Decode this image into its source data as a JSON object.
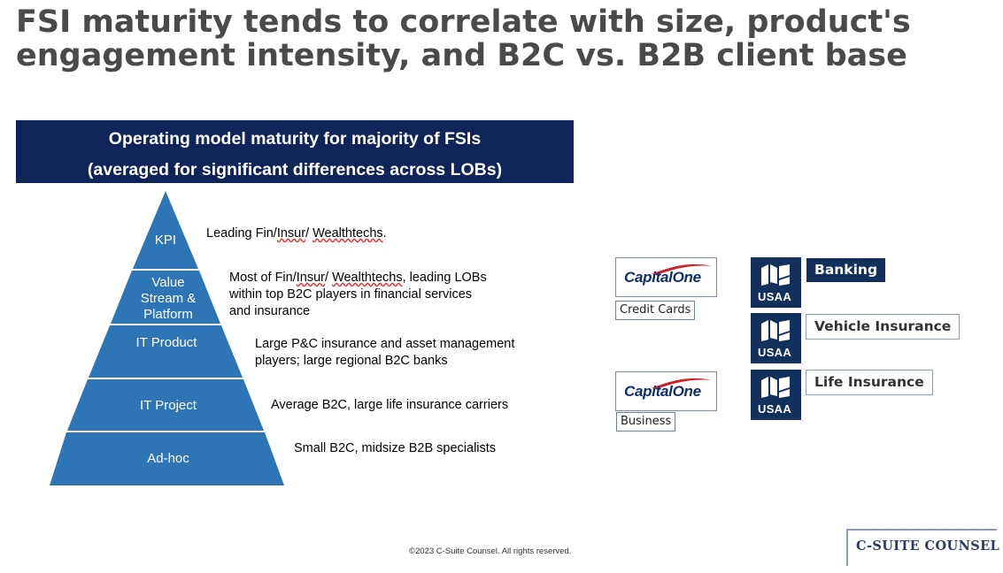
{
  "title": {
    "line1": "FSI maturity tends to correlate with size, product's",
    "line2": "engagement intensity, and B2C vs. B2B client base"
  },
  "banner": {
    "line1": "Operating model maturity for majority of FSIs",
    "line2": "(averaged for significant differences across LOBs)",
    "color": "#0f2559"
  },
  "pyramid": {
    "fill": "#2e75b6",
    "levels": [
      {
        "label_lines": [
          "KPI"
        ]
      },
      {
        "label_lines": [
          "Value",
          "Stream &",
          "Platform"
        ]
      },
      {
        "label_lines": [
          "IT Product"
        ]
      },
      {
        "label_lines": [
          "IT Project"
        ]
      },
      {
        "label_lines": [
          "Ad-hoc"
        ]
      }
    ]
  },
  "descriptions": {
    "kpi": {
      "w1": "Leading Fin/",
      "w2": "Insur",
      "w3": "/ ",
      "w4": "Wealthtechs",
      "w5": "."
    },
    "value_stream": {
      "a1": "Most of Fin/",
      "a2": "Insur",
      "a3": "/ ",
      "a4": "Wealthtechs",
      "a5": ", leading LOBs",
      "line2": "within top B2C players in financial services",
      "line3": "and insurance"
    },
    "it_product": {
      "line1": "Large P&C insurance and asset management",
      "line2": "players; large regional B2C banks"
    },
    "it_project": "Average B2C, large life insurance carriers",
    "adhoc": "Small B2C, midsize B2B specialists"
  },
  "examples": {
    "capital_one_logo_text": "CapitalOne",
    "capital_one_tags": [
      "Credit Cards",
      "Business"
    ],
    "usaa_logo_text": "USAA",
    "usaa_labels": [
      "Banking",
      "Vehicle Insurance",
      "Life Insurance"
    ],
    "accent_red": "#cc2127",
    "usaa_navy": "#12305c"
  },
  "footer": "©2023 C-Suite Counsel.  All rights reserved.",
  "brand": "C-SUITE COUNSEL"
}
